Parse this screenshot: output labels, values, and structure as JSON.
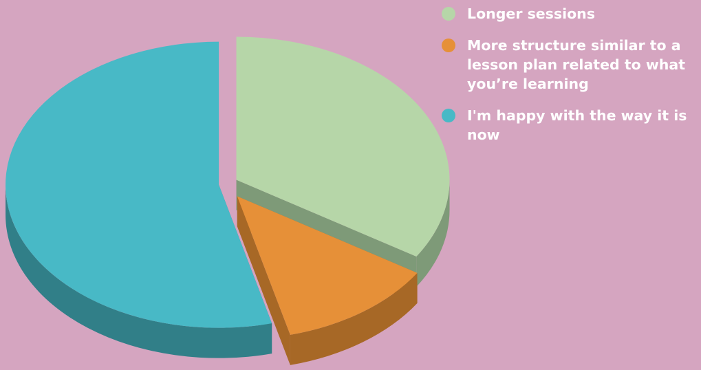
{
  "chart_data": {
    "type": "pie",
    "title": "",
    "categories": [
      "Longer sessions",
      "More structure similar to a lesson plan related to what you’re learning",
      "I'm happy with the way it is now"
    ],
    "values": [
      34,
      12,
      54
    ],
    "colors": [
      "#b6d6a8",
      "#e69038",
      "#48b9c6"
    ],
    "shade_colors": [
      "#7e9a78",
      "#a76826",
      "#317f88"
    ],
    "legend_position": "top-right",
    "exploded": true,
    "style": "3d"
  },
  "legend": {
    "items": [
      {
        "label": "Longer sessions",
        "color": "#b6d6a8"
      },
      {
        "label": "More structure similar to a lesson plan related to what you’re learning",
        "color": "#e69038"
      },
      {
        "label": "I'm happy with the way it is now",
        "color": "#48b9c6"
      }
    ]
  }
}
